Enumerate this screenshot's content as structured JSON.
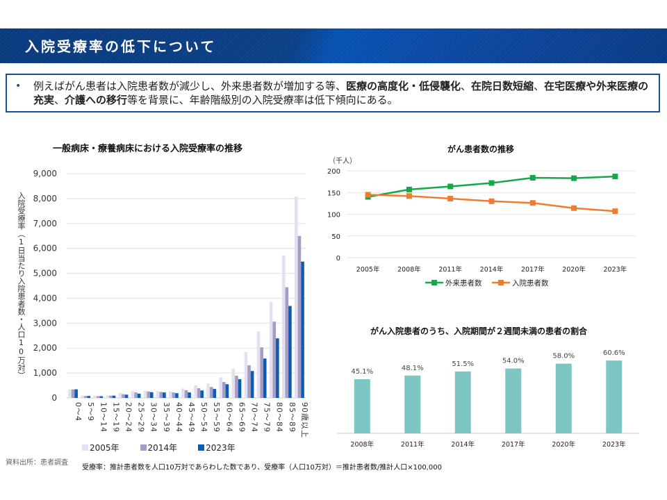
{
  "header": {
    "title": "入院受療率の低下について"
  },
  "summary": {
    "bullet": "•",
    "segments": [
      {
        "text": "例えばがん患者は入院患者数が減少し、外来患者数が増加する等、",
        "bold": false
      },
      {
        "text": "医療の高度化・低侵襲化",
        "bold": true
      },
      {
        "text": "、",
        "bold": false
      },
      {
        "text": "在院日数短縮",
        "bold": true
      },
      {
        "text": "、",
        "bold": false
      },
      {
        "text": "在宅医療や外来医療の充実",
        "bold": true
      },
      {
        "text": "、",
        "bold": false
      },
      {
        "text": "介護への移行",
        "bold": true
      },
      {
        "text": "等を背景に、年齢階級別の入院受療率は低下傾向にある。",
        "bold": false
      }
    ]
  },
  "source": "資料出所：患者調査",
  "note": "受療率：推計患者数を人口10万対であらわした数であり、受療率（人口10万対）＝推計患者数/推計人口×100,000",
  "chart_data": [
    {
      "type": "bar",
      "title": "一般病床・療養病床における入院受療率の推移",
      "ylabel": "入院受療率（1日当たり入院患者数・人口10万対）",
      "xlabel": "",
      "ylim": [
        0,
        9000
      ],
      "yticks": [
        0,
        1000,
        2000,
        3000,
        4000,
        5000,
        6000,
        7000,
        8000,
        9000
      ],
      "ytick_labels": [
        "0",
        "1,000",
        "2,000",
        "3,000",
        "4,000",
        "5,000",
        "6,000",
        "7,000",
        "8,000",
        "9,000"
      ],
      "grid": true,
      "legend": "bottom-left",
      "categories": [
        "0～4",
        "5～9",
        "10～14",
        "15～19",
        "20～24",
        "25～29",
        "30～34",
        "35～39",
        "40～44",
        "45～49",
        "50～54",
        "55～59",
        "60～64",
        "65～69",
        "70～74",
        "75～79",
        "80～84",
        "85～89",
        "90歳以上"
      ],
      "series": [
        {
          "name": "2005年",
          "color": "#e3e1ef",
          "values": [
            340,
            95,
            85,
            100,
            200,
            280,
            290,
            275,
            270,
            380,
            510,
            580,
            830,
            1170,
            1840,
            2670,
            3860,
            5720,
            8080
          ]
        },
        {
          "name": "2014年",
          "color": "#a49ec6",
          "values": [
            340,
            80,
            70,
            90,
            150,
            220,
            260,
            240,
            220,
            310,
            390,
            440,
            640,
            890,
            1310,
            2030,
            3060,
            4440,
            6500
          ]
        },
        {
          "name": "2023年",
          "color": "#0b5cb5",
          "values": [
            345,
            78,
            68,
            90,
            130,
            170,
            230,
            220,
            190,
            220,
            300,
            360,
            550,
            750,
            1080,
            1580,
            2390,
            3690,
            5470
          ]
        }
      ]
    },
    {
      "type": "line",
      "title": "がん患者数の推移",
      "unit_label": "（千人）",
      "xlabel": "",
      "ylabel": "",
      "ylim": [
        0,
        200
      ],
      "yticks": [
        0,
        50,
        100,
        150,
        200
      ],
      "grid": true,
      "legend": "bottom",
      "categories": [
        "2005年",
        "2008年",
        "2011年",
        "2014年",
        "2017年",
        "2020年",
        "2023年"
      ],
      "series": [
        {
          "name": "外来患者数",
          "color": "#14a84a",
          "values": [
            140,
            157,
            164,
            172,
            184,
            183,
            187
          ]
        },
        {
          "name": "入院患者数",
          "color": "#ef7d2f",
          "values": [
            145,
            142,
            136,
            130,
            126,
            114,
            107
          ]
        }
      ]
    },
    {
      "type": "bar",
      "title": "がん入院患者のうち、入院期間が２週間未満の患者の割合",
      "xlabel": "",
      "ylabel": "",
      "ylim": [
        0,
        70
      ],
      "grid": false,
      "color": "#7ec6c4",
      "categories": [
        "2008年",
        "2011年",
        "2014年",
        "2017年",
        "2020年",
        "2023年"
      ],
      "values": [
        45.1,
        48.1,
        51.5,
        54.0,
        58.0,
        60.6
      ],
      "data_labels": [
        "45.1%",
        "48.1%",
        "51.5%",
        "54.0%",
        "58.0%",
        "60.6%"
      ]
    }
  ]
}
